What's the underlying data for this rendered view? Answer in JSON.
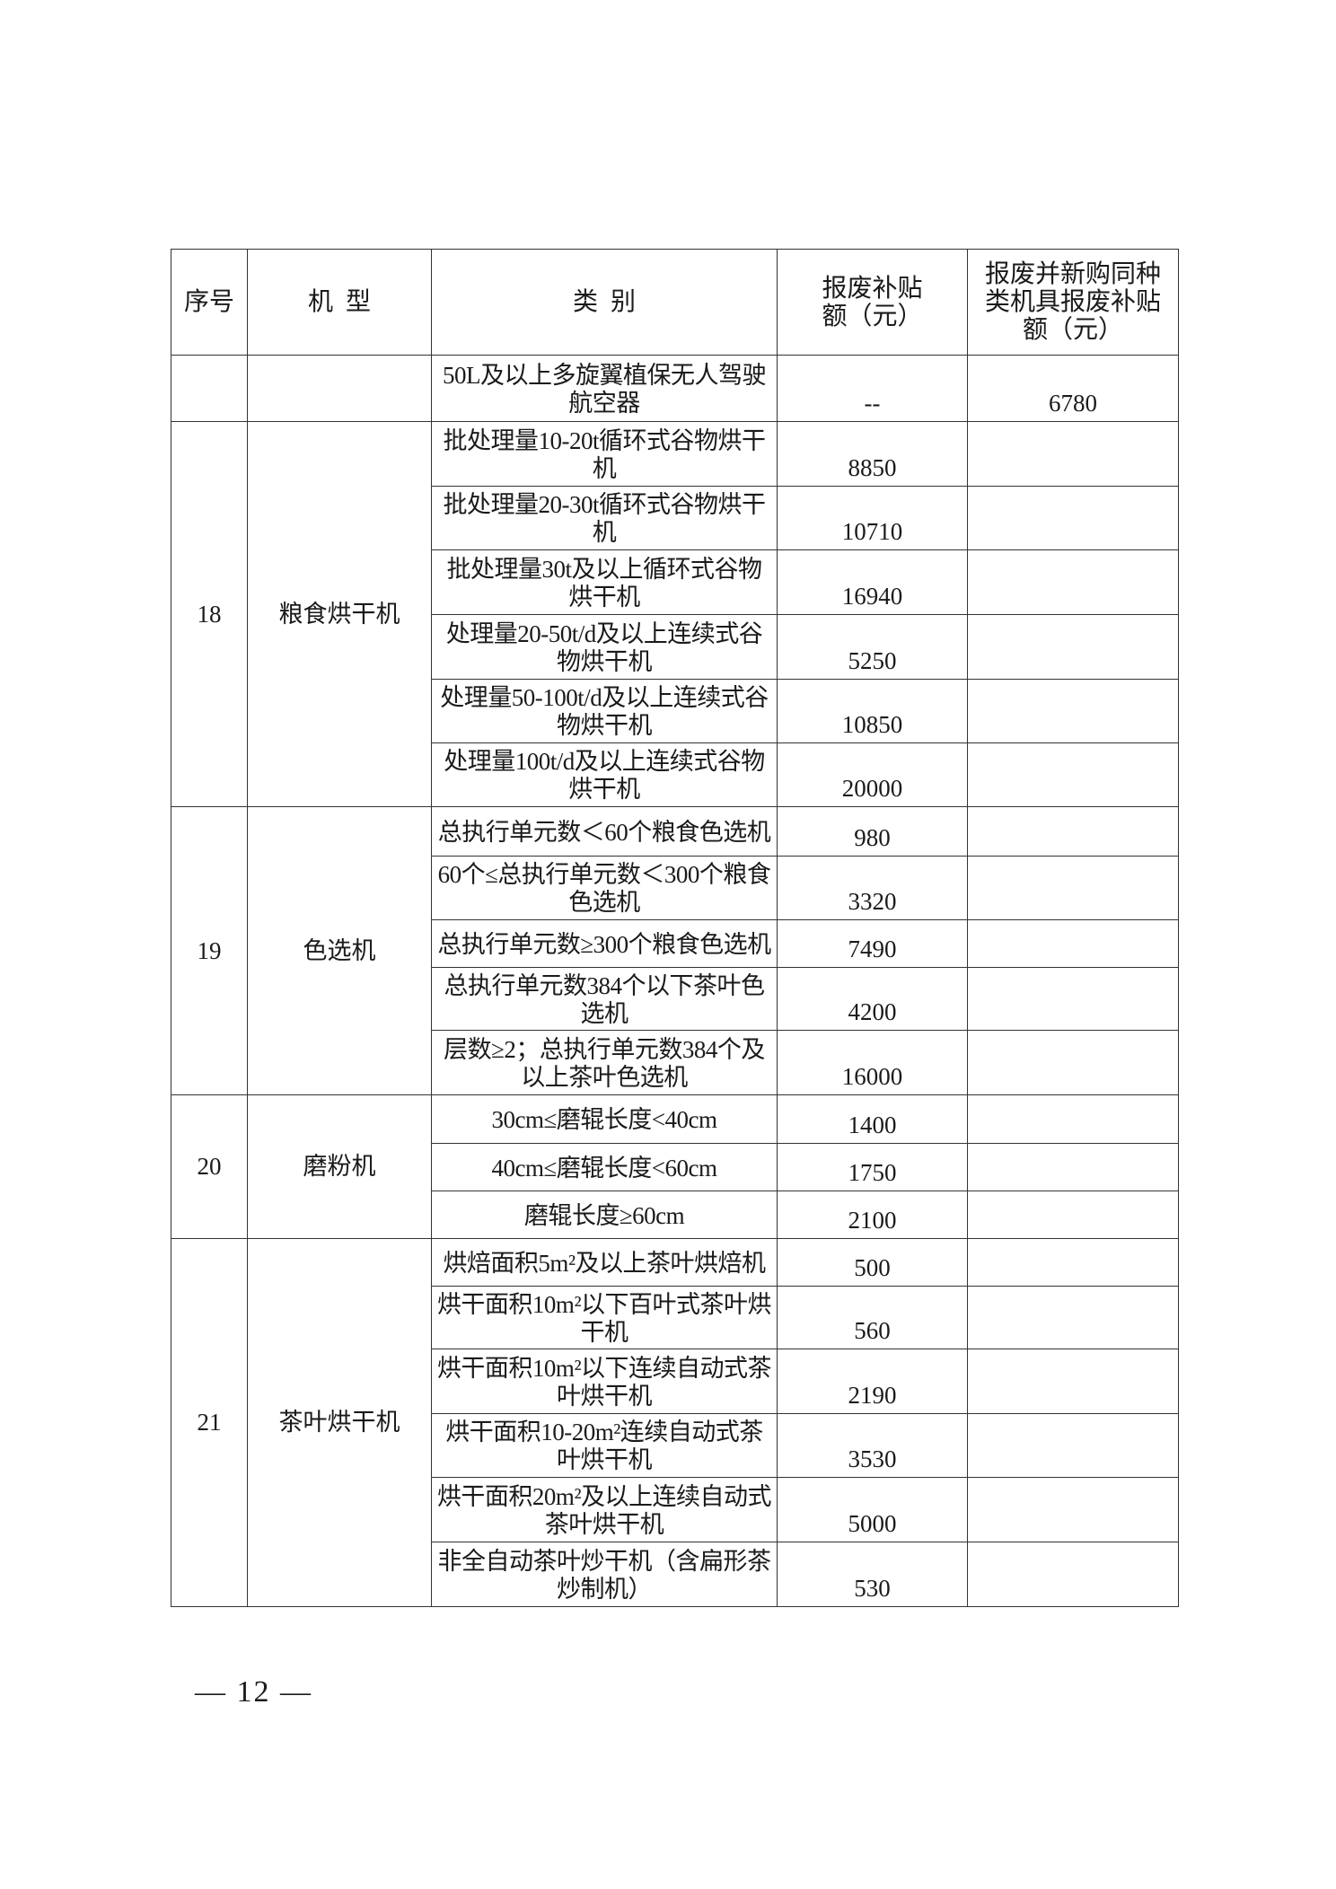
{
  "header": {
    "seq": "序号",
    "model": "机  型",
    "category": "类  别",
    "scrap_subsidy": "报废补贴额（元）",
    "scrap_new_subsidy": "报废并新购同种类机具报废补贴额（元）"
  },
  "groups": [
    {
      "seq": "",
      "model": "",
      "rows": [
        {
          "category": "50L及以上多旋翼植保无人驾驶航空器",
          "scrap": "--",
          "scrap_new": "6780"
        }
      ]
    },
    {
      "seq": "18",
      "model": "粮食烘干机",
      "rows": [
        {
          "category": "批处理量10-20t循环式谷物烘干机",
          "scrap": "8850",
          "scrap_new": ""
        },
        {
          "category": "批处理量20-30t循环式谷物烘干机",
          "scrap": "10710",
          "scrap_new": ""
        },
        {
          "category": "批处理量30t及以上循环式谷物烘干机",
          "scrap": "16940",
          "scrap_new": ""
        },
        {
          "category": "处理量20-50t/d及以上连续式谷物烘干机",
          "scrap": "5250",
          "scrap_new": ""
        },
        {
          "category": "处理量50-100t/d及以上连续式谷物烘干机",
          "scrap": "10850",
          "scrap_new": ""
        },
        {
          "category": "处理量100t/d及以上连续式谷物烘干机",
          "scrap": "20000",
          "scrap_new": ""
        }
      ]
    },
    {
      "seq": "19",
      "model": "色选机",
      "rows": [
        {
          "category": "总执行单元数＜60个粮食色选机",
          "scrap": "980",
          "scrap_new": ""
        },
        {
          "category": "60个≤总执行单元数＜300个粮食色选机",
          "scrap": "3320",
          "scrap_new": ""
        },
        {
          "category": "总执行单元数≥300个粮食色选机",
          "scrap": "7490",
          "scrap_new": ""
        },
        {
          "category": "总执行单元数384个以下茶叶色选机",
          "scrap": "4200",
          "scrap_new": ""
        },
        {
          "category": "层数≥2；总执行单元数384个及以上茶叶色选机",
          "scrap": "16000",
          "scrap_new": ""
        }
      ]
    },
    {
      "seq": "20",
      "model": "磨粉机",
      "rows": [
        {
          "category": "30cm≤磨辊长度<40cm",
          "scrap": "1400",
          "scrap_new": ""
        },
        {
          "category": "40cm≤磨辊长度<60cm",
          "scrap": "1750",
          "scrap_new": ""
        },
        {
          "category": "磨辊长度≥60cm",
          "scrap": "2100",
          "scrap_new": ""
        }
      ]
    },
    {
      "seq": "21",
      "model": "茶叶烘干机",
      "rows": [
        {
          "category": "烘焙面积5m²及以上茶叶烘焙机",
          "scrap": "500",
          "scrap_new": ""
        },
        {
          "category": "烘干面积10m²以下百叶式茶叶烘干机",
          "scrap": "560",
          "scrap_new": ""
        },
        {
          "category": "烘干面积10m²以下连续自动式茶叶烘干机",
          "scrap": "2190",
          "scrap_new": ""
        },
        {
          "category": "烘干面积10-20m²连续自动式茶叶烘干机",
          "scrap": "3530",
          "scrap_new": ""
        },
        {
          "category": "烘干面积20m²及以上连续自动式茶叶烘干机",
          "scrap": "5000",
          "scrap_new": ""
        },
        {
          "category": "非全自动茶叶炒干机（含扁形茶炒制机）",
          "scrap": "530",
          "scrap_new": ""
        }
      ]
    }
  ],
  "footer": {
    "page_number": "— 12 —"
  }
}
